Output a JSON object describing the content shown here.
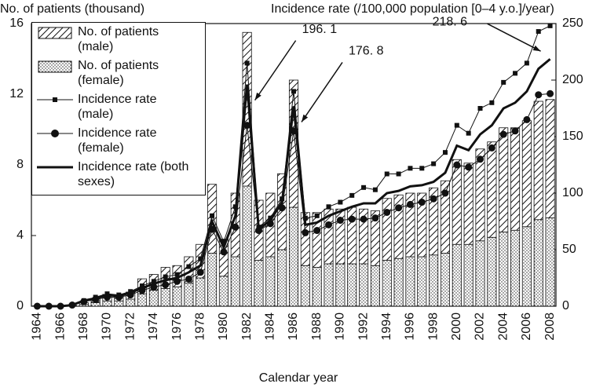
{
  "chart_data": {
    "type": "bar",
    "y_label": "No. of patients (thousand)",
    "y2_label": "Incidence rate (/100,000 population [0–4 y.o.]/year)",
    "x_label": "Calendar year",
    "categories": [
      "1964",
      null,
      "1966",
      null,
      "1968",
      null,
      "1970",
      null,
      "1972",
      null,
      "1974",
      null,
      "1976",
      null,
      "1978",
      null,
      "1980",
      null,
      "1982",
      null,
      "1984",
      null,
      "1986",
      null,
      "1988",
      null,
      "1990",
      null,
      "1992",
      null,
      "1994",
      null,
      "1996",
      null,
      "1998",
      null,
      "2000",
      null,
      "2002",
      null,
      "2004",
      null,
      "2006",
      null,
      "2008"
    ],
    "ylim": [
      0,
      16
    ],
    "yticks": [
      0,
      4,
      8,
      12,
      16
    ],
    "y2lim": [
      0,
      250
    ],
    "y2ticks": [
      0,
      50,
      100,
      150,
      200,
      250
    ],
    "series": [
      {
        "name": "No. of patients (male)",
        "type": "bar",
        "pattern": "hatch",
        "color": "#111111",
        "values": [
          0.01,
          0.01,
          0.01,
          0.03,
          0.1,
          0.2,
          0.37,
          0.3,
          0.4,
          0.85,
          0.9,
          1.2,
          1.2,
          1.5,
          1.9,
          3.9,
          2.1,
          3.6,
          8.7,
          3.4,
          3.6,
          4.3,
          7.2,
          3.0,
          3.1,
          3.1,
          3.1,
          3.2,
          3.1,
          3.1,
          3.5,
          3.6,
          3.6,
          3.6,
          3.8,
          4.1,
          4.8,
          4.6,
          5.2,
          5.4,
          5.9,
          5.8,
          6.0,
          6.7,
          6.7
        ]
      },
      {
        "name": "No. of patients (female)",
        "type": "bar",
        "pattern": "dots",
        "color": "#111111",
        "values": [
          0.01,
          0.01,
          0.02,
          0.02,
          0.1,
          0.2,
          0.3,
          0.3,
          0.4,
          0.7,
          0.9,
          1.0,
          1.1,
          1.3,
          1.6,
          3.0,
          1.7,
          2.8,
          6.8,
          2.6,
          2.8,
          3.2,
          5.6,
          2.3,
          2.2,
          2.4,
          2.4,
          2.4,
          2.4,
          2.3,
          2.6,
          2.7,
          2.8,
          2.8,
          2.9,
          3.0,
          3.5,
          3.5,
          3.7,
          3.9,
          4.2,
          4.3,
          4.5,
          4.9,
          5.0
        ]
      },
      {
        "name": "Incidence rate (male)",
        "type": "line",
        "axis": "y2",
        "marker": "square",
        "width": 1,
        "color": "#111111",
        "values": [
          0,
          0,
          0,
          1,
          5,
          8,
          11,
          10,
          13,
          18,
          22,
          26,
          28,
          35,
          42,
          80,
          57,
          88,
          215,
          70,
          78,
          95,
          190,
          78,
          80,
          88,
          92,
          98,
          105,
          103,
          117,
          117,
          122,
          122,
          126,
          136,
          160,
          153,
          175,
          180,
          198,
          206,
          215,
          243,
          248
        ]
      },
      {
        "name": "Incidence rate (female)",
        "type": "line",
        "axis": "y2",
        "marker": "circle",
        "width": 1,
        "color": "#111111",
        "values": [
          0,
          0,
          0,
          1,
          4,
          6,
          8,
          8,
          10,
          14,
          17,
          19,
          22,
          24,
          30,
          68,
          48,
          70,
          160,
          67,
          73,
          87,
          155,
          65,
          67,
          72,
          76,
          77,
          77,
          78,
          83,
          87,
          90,
          92,
          95,
          100,
          125,
          123,
          130,
          140,
          152,
          155,
          165,
          187,
          188
        ]
      },
      {
        "name": "Incidence rate (both sexes)",
        "type": "line",
        "axis": "y2",
        "marker": "none",
        "width": 3,
        "color": "#111111",
        "values": [
          0,
          0,
          0,
          1,
          5,
          7,
          10,
          9,
          12,
          16,
          20,
          23,
          25,
          30,
          36,
          75,
          52,
          80,
          196.1,
          68,
          76,
          92,
          176.8,
          72,
          74,
          80,
          84,
          88,
          91,
          91,
          100,
          102,
          106,
          107,
          110,
          118,
          142,
          138,
          152,
          160,
          175,
          180,
          190,
          210,
          218.6
        ],
        "value_labels": [
          null,
          null,
          null,
          null,
          null,
          null,
          null,
          null,
          null,
          null,
          null,
          null,
          null,
          null,
          null,
          null,
          null,
          null,
          "196. 1",
          null,
          null,
          null,
          "176. 8",
          null,
          null,
          null,
          null,
          null,
          null,
          null,
          null,
          null,
          null,
          null,
          null,
          null,
          null,
          null,
          null,
          null,
          null,
          null,
          null,
          null,
          "218. 6"
        ]
      }
    ]
  }
}
